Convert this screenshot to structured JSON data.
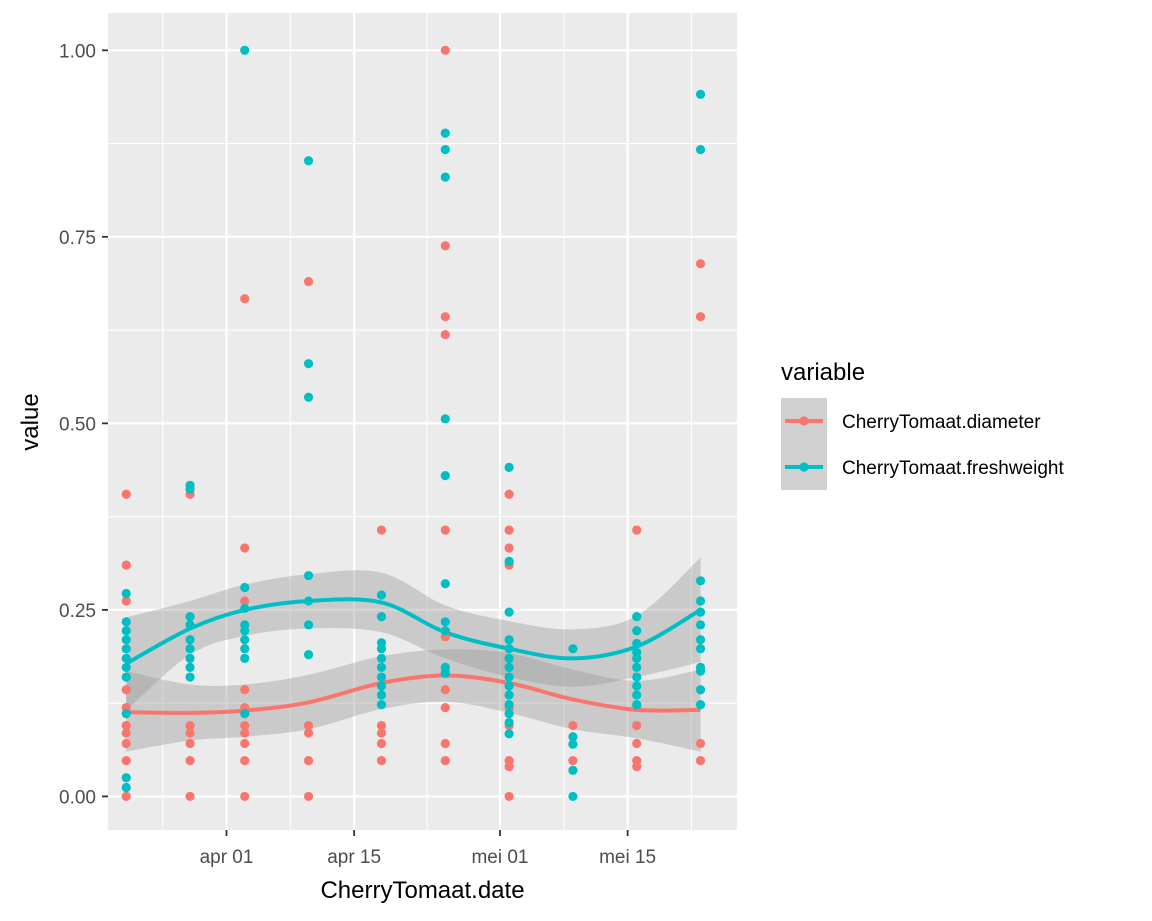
{
  "chart_data": {
    "type": "scatter",
    "xlabel": "CherryTomaat.date",
    "ylabel": "value",
    "x_tick_labels": [
      "apr 01",
      "apr 15",
      "mei 01",
      "mei 15"
    ],
    "x_tick_dates": [
      "2019-04-01",
      "2019-04-15",
      "2019-05-01",
      "2019-05-15"
    ],
    "xlim": [
      "2019-03-19",
      "2019-05-27"
    ],
    "y_tick_labels": [
      "0.00",
      "0.25",
      "0.50",
      "0.75",
      "1.00"
    ],
    "y_ticks": [
      0,
      0.25,
      0.5,
      0.75,
      1.0
    ],
    "ylim": [
      -0.045,
      1.05
    ],
    "grid": true,
    "smoother": "loess",
    "legend": {
      "title": "variable",
      "position": "right"
    },
    "series": [
      {
        "name": "CherryTomaat.diameter",
        "color": "#F8766D",
        "points": [
          {
            "x": "2019-03-21",
            "y": [
              0.405,
              0.31,
              0.262,
              0.143,
              0.119,
              0.095,
              0.085,
              0.071,
              0.048,
              0.0
            ]
          },
          {
            "x": "2019-03-28",
            "y": [
              0.405,
              0.095,
              0.085,
              0.071,
              0.048,
              0.0
            ]
          },
          {
            "x": "2019-04-03",
            "y": [
              0.667,
              0.333,
              0.262,
              0.143,
              0.119,
              0.095,
              0.085,
              0.071,
              0.048,
              0.0
            ]
          },
          {
            "x": "2019-04-10",
            "y": [
              0.69,
              0.095,
              0.085,
              0.048,
              0.0
            ]
          },
          {
            "x": "2019-04-18",
            "y": [
              0.357,
              0.095,
              0.085,
              0.071,
              0.048
            ]
          },
          {
            "x": "2019-04-25",
            "y": [
              1.0,
              0.738,
              0.643,
              0.619,
              0.357,
              0.214,
              0.167,
              0.143,
              0.119,
              0.071,
              0.048
            ]
          },
          {
            "x": "2019-05-02",
            "y": [
              0.405,
              0.357,
              0.333,
              0.31,
              0.119,
              0.095,
              0.048,
              0.04,
              0.0
            ]
          },
          {
            "x": "2019-05-09",
            "y": [
              0.095,
              0.048
            ]
          },
          {
            "x": "2019-05-16",
            "y": [
              0.357,
              0.119,
              0.095,
              0.071,
              0.048,
              0.04
            ]
          },
          {
            "x": "2019-05-23",
            "y": [
              0.714,
              0.643,
              0.071,
              0.048
            ]
          }
        ],
        "smooth": [
          {
            "x": "2019-03-21",
            "y": 0.113,
            "lo": 0.06,
            "hi": 0.168
          },
          {
            "x": "2019-03-28",
            "y": 0.112,
            "lo": 0.075,
            "hi": 0.15
          },
          {
            "x": "2019-04-03",
            "y": 0.115,
            "lo": 0.08,
            "hi": 0.15
          },
          {
            "x": "2019-04-10",
            "y": 0.126,
            "lo": 0.09,
            "hi": 0.163
          },
          {
            "x": "2019-04-18",
            "y": 0.152,
            "lo": 0.117,
            "hi": 0.188
          },
          {
            "x": "2019-04-25",
            "y": 0.162,
            "lo": 0.127,
            "hi": 0.197
          },
          {
            "x": "2019-05-02",
            "y": 0.152,
            "lo": 0.112,
            "hi": 0.192
          },
          {
            "x": "2019-05-09",
            "y": 0.13,
            "lo": 0.09,
            "hi": 0.17
          },
          {
            "x": "2019-05-16",
            "y": 0.116,
            "lo": 0.078,
            "hi": 0.155
          },
          {
            "x": "2019-05-23",
            "y": 0.116,
            "lo": 0.06,
            "hi": 0.17
          }
        ]
      },
      {
        "name": "CherryTomaat.freshweight",
        "color": "#00BFC4",
        "points": [
          {
            "x": "2019-03-21",
            "y": [
              0.272,
              0.234,
              0.222,
              0.21,
              0.198,
              0.185,
              0.173,
              0.16,
              0.111,
              0.025,
              0.012
            ]
          },
          {
            "x": "2019-03-28",
            "y": [
              0.417,
              0.412,
              0.241,
              0.23,
              0.21,
              0.198,
              0.185,
              0.173,
              0.16
            ]
          },
          {
            "x": "2019-04-03",
            "y": [
              1.0,
              0.28,
              0.252,
              0.23,
              0.222,
              0.21,
              0.198,
              0.185,
              0.111
            ]
          },
          {
            "x": "2019-04-10",
            "y": [
              0.852,
              0.58,
              0.535,
              0.296,
              0.262,
              0.23,
              0.19
            ]
          },
          {
            "x": "2019-04-18",
            "y": [
              0.27,
              0.241,
              0.206,
              0.198,
              0.185,
              0.173,
              0.16,
              0.148,
              0.136,
              0.123
            ]
          },
          {
            "x": "2019-04-25",
            "y": [
              0.889,
              0.867,
              0.83,
              0.506,
              0.43,
              0.285,
              0.234,
              0.222,
              0.173,
              0.165
            ]
          },
          {
            "x": "2019-05-02",
            "y": [
              0.441,
              0.315,
              0.247,
              0.21,
              0.198,
              0.185,
              0.173,
              0.16,
              0.148,
              0.136,
              0.123,
              0.111,
              0.099,
              0.084
            ]
          },
          {
            "x": "2019-05-09",
            "y": [
              0.198,
              0.08,
              0.07,
              0.035,
              0.0
            ]
          },
          {
            "x": "2019-05-16",
            "y": [
              0.241,
              0.222,
              0.205,
              0.193,
              0.185,
              0.173,
              0.16,
              0.148,
              0.136,
              0.123
            ]
          },
          {
            "x": "2019-05-23",
            "y": [
              0.941,
              0.867,
              0.289,
              0.262,
              0.247,
              0.23,
              0.21,
              0.198,
              0.173,
              0.168,
              0.143,
              0.123
            ]
          }
        ],
        "smooth": [
          {
            "x": "2019-03-21",
            "y": 0.178,
            "lo": 0.115,
            "hi": 0.24
          },
          {
            "x": "2019-03-28",
            "y": 0.225,
            "lo": 0.19,
            "hi": 0.262
          },
          {
            "x": "2019-04-03",
            "y": 0.25,
            "lo": 0.215,
            "hi": 0.284
          },
          {
            "x": "2019-04-10",
            "y": 0.262,
            "lo": 0.225,
            "hi": 0.298
          },
          {
            "x": "2019-04-18",
            "y": 0.26,
            "lo": 0.22,
            "hi": 0.3
          },
          {
            "x": "2019-04-25",
            "y": 0.22,
            "lo": 0.185,
            "hi": 0.256
          },
          {
            "x": "2019-05-02",
            "y": 0.198,
            "lo": 0.16,
            "hi": 0.235
          },
          {
            "x": "2019-05-09",
            "y": 0.185,
            "lo": 0.147,
            "hi": 0.224
          },
          {
            "x": "2019-05-16",
            "y": 0.201,
            "lo": 0.16,
            "hi": 0.242
          },
          {
            "x": "2019-05-23",
            "y": 0.25,
            "lo": 0.18,
            "hi": 0.32
          }
        ]
      }
    ]
  }
}
